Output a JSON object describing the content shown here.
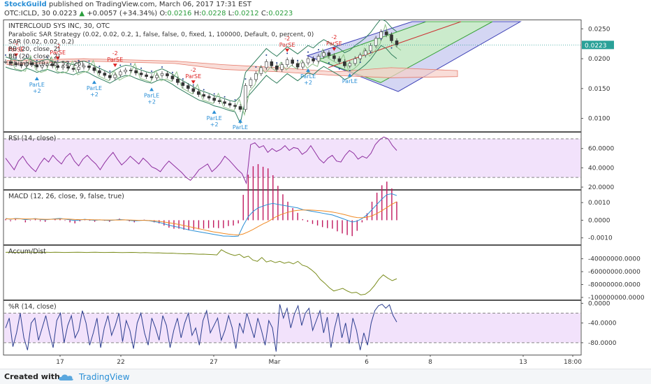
{
  "header": {
    "author": "StockGuild",
    "published_text": "published on TradingView.com, March 06, 2017 17:31 EST",
    "symbol": "OTC:ICLD, 30",
    "last": "0.0223",
    "change": "+0.0057 (+34.34%)",
    "ohlc": [
      {
        "k": "O:",
        "v": "0.0216"
      },
      {
        "k": "H:",
        "v": "0.0228"
      },
      {
        "k": "L:",
        "v": "0.0212"
      },
      {
        "k": "C:",
        "v": "0.0223"
      }
    ],
    "up_arrow": "▲"
  },
  "footer": {
    "created_with": "Created with",
    "brand": "TradingView",
    "logo_icon": "tradingview-cloud-icon"
  },
  "chart_data": [
    {
      "type": "candlestick",
      "title": "INTERCLOUD SYS INC, 30, OTC",
      "studies": [
        "Parabolic SAR Strategy (0.02, 0.02, 0.2, 1, false, false, 0, fixed, 1, 100000, Default, 0, percent, 0)",
        "SAR (0.02, 0.02, 0.2)",
        "BB (20, close, 2)",
        "BB (20, close, 2)",
        "Ichimoku (9, 26, 52, 26)"
      ],
      "ylim": [
        0.0082,
        0.0262
      ],
      "y_ticks": [
        "0.0250",
        "0.0200",
        "0.0150",
        "0.0100"
      ],
      "y_tick_values": [
        0.025,
        0.02,
        0.015,
        0.01
      ],
      "last_price_label": "0.0223",
      "last_price": 0.0223,
      "x_ticks": [
        "17",
        "22",
        "27",
        "Mar",
        "6",
        "8",
        "13",
        "18:00"
      ],
      "closes": [
        0.0195,
        0.0192,
        0.019,
        0.0188,
        0.0193,
        0.019,
        0.0186,
        0.0189,
        0.0191,
        0.0188,
        0.0185,
        0.0187,
        0.0184,
        0.0182,
        0.0186,
        0.0188,
        0.0185,
        0.018,
        0.0176,
        0.0172,
        0.0168,
        0.0173,
        0.0178,
        0.0181,
        0.018,
        0.0176,
        0.0173,
        0.017,
        0.0168,
        0.0172,
        0.0175,
        0.0171,
        0.0166,
        0.016,
        0.0155,
        0.015,
        0.0145,
        0.014,
        0.0137,
        0.0134,
        0.013,
        0.0128,
        0.0125,
        0.0122,
        0.012,
        0.0115,
        0.0155,
        0.0165,
        0.0175,
        0.0185,
        0.0195,
        0.0188,
        0.0182,
        0.019,
        0.0198,
        0.0192,
        0.0186,
        0.0193,
        0.02,
        0.0196,
        0.0204,
        0.021,
        0.0205,
        0.02,
        0.0195,
        0.0188,
        0.0192,
        0.02,
        0.0206,
        0.0213,
        0.0222,
        0.0234,
        0.0245,
        0.024,
        0.023,
        0.0223
      ],
      "signals": [
        {
          "label": "ParSE",
          "qty": "-2",
          "i": 2,
          "side": "sell"
        },
        {
          "label": "ParSE",
          "qty": "-2",
          "i": 10,
          "side": "sell"
        },
        {
          "label": "ParSE",
          "qty": "-2",
          "i": 21,
          "side": "sell"
        },
        {
          "label": "ParSE",
          "qty": "-2",
          "i": 36,
          "side": "sell"
        },
        {
          "label": "ParSE",
          "qty": "-2",
          "i": 54,
          "side": "sell"
        },
        {
          "label": "ParSE",
          "qty": "-2",
          "i": 63,
          "side": "sell"
        },
        {
          "label": "ParLE",
          "qty": "+2",
          "i": 6,
          "side": "buy"
        },
        {
          "label": "ParLE",
          "qty": "+2",
          "i": 17,
          "side": "buy"
        },
        {
          "label": "ParLE",
          "qty": "+2",
          "i": 28,
          "side": "buy"
        },
        {
          "label": "ParLE",
          "qty": "+2",
          "i": 40,
          "side": "buy"
        },
        {
          "label": "ParLE",
          "qty": "",
          "i": 45,
          "side": "buy"
        },
        {
          "label": "ParLE",
          "qty": "+2",
          "i": 58,
          "side": "buy"
        },
        {
          "label": "ParLE",
          "qty": "",
          "i": 66,
          "side": "buy"
        }
      ]
    },
    {
      "type": "line",
      "title": "RSI (14, close)",
      "ylim": [
        20,
        75
      ],
      "y_ticks": [
        "60.0000",
        "40.0000",
        "20.0000"
      ],
      "y_tick_values": [
        60,
        40,
        20
      ],
      "band": [
        30,
        70
      ],
      "values": [
        50,
        44,
        38,
        47,
        52,
        45,
        40,
        36,
        44,
        50,
        46,
        53,
        48,
        44,
        51,
        55,
        47,
        42,
        49,
        53,
        48,
        44,
        38,
        45,
        51,
        56,
        49,
        43,
        47,
        52,
        48,
        44,
        50,
        46,
        41,
        39,
        36,
        42,
        47,
        43,
        39,
        35,
        30,
        27,
        32,
        38,
        41,
        44,
        36,
        40,
        45,
        52,
        48,
        43,
        38,
        34,
        24,
        64,
        66,
        61,
        63,
        56,
        60,
        57,
        59,
        63,
        58,
        61,
        60,
        54,
        57,
        63,
        56,
        49,
        45,
        50,
        53,
        47,
        46,
        53,
        58,
        55,
        49,
        52,
        50,
        55,
        64,
        69,
        72,
        70,
        63,
        58
      ]
    },
    {
      "type": "line",
      "title": "MACD (12, 26, close, 9, false, true)",
      "ylim": [
        -0.00125,
        0.0016
      ],
      "y_ticks": [
        "0.0010",
        "0.0000",
        "-0.0010"
      ],
      "y_tick_values": [
        0.001,
        0,
        -0.001
      ],
      "macd": [
        0.0001,
        5e-05,
        0.0001,
        8e-05,
        3e-05,
        6e-05,
        9e-05,
        4e-05,
        2e-05,
        5e-05,
        8e-05,
        0.0001,
        6e-05,
        2e-05,
        -2e-05,
        1e-05,
        5e-05,
        2e-05,
        -1e-05,
        2e-05,
        0,
        -2e-05,
        1e-05,
        4e-05,
        2e-05,
        -1e-05,
        -4e-05,
        -2e-05,
        0,
        -3e-05,
        -8e-05,
        -0.00012,
        -0.0002,
        -0.00028,
        -0.00035,
        -0.0004,
        -0.00048,
        -0.00055,
        -0.0006,
        -0.00065,
        -0.0007,
        -0.00075,
        -0.0008,
        -0.00085,
        -0.0009,
        -0.0009,
        -0.00092,
        -0.0009,
        -0.0003,
        0.0002,
        0.0005,
        0.0007,
        0.0008,
        0.0009,
        0.00095,
        0.0009,
        0.00085,
        0.0008,
        0.00075,
        0.0007,
        0.0006,
        0.00055,
        0.0005,
        0.00045,
        0.0004,
        0.00035,
        0.0003,
        0.0002,
        0.0001,
        0,
        -0.0001,
        -5e-05,
        0.0001,
        0.0003,
        0.0006,
        0.0009,
        0.0012,
        0.00145,
        0.0015,
        0.0014
      ],
      "signal": [
        8e-05,
        7e-05,
        8e-05,
        8e-05,
        7e-05,
        7e-05,
        7e-05,
        6e-05,
        5e-05,
        5e-05,
        6e-05,
        7e-05,
        7e-05,
        6e-05,
        4e-05,
        3e-05,
        3e-05,
        3e-05,
        2e-05,
        2e-05,
        1e-05,
        1e-05,
        1e-05,
        1e-05,
        2e-05,
        1e-05,
        0,
        -1e-05,
        -1e-05,
        -2e-05,
        -4e-05,
        -6e-05,
        -0.0001,
        -0.00014,
        -0.00019,
        -0.00024,
        -0.0003,
        -0.00036,
        -0.00042,
        -0.00048,
        -0.00054,
        -0.0006,
        -0.00066,
        -0.0007,
        -0.00075,
        -0.00079,
        -0.00082,
        -0.00084,
        -0.00078,
        -0.00066,
        -0.00052,
        -0.00036,
        -0.00021,
        -8e-05,
        0.0001,
        0.00025,
        0.00036,
        0.00045,
        0.00052,
        0.00056,
        0.00058,
        0.00058,
        0.00057,
        0.00055,
        0.00053,
        0.0005,
        0.00046,
        0.00041,
        0.00035,
        0.00028,
        0.0002,
        0.00015,
        0.00014,
        0.00017,
        0.00025,
        0.00038,
        0.00054,
        0.00072,
        0.0009,
        0.00105
      ]
    },
    {
      "type": "line",
      "title": "Accum/Dist",
      "ylim": [
        -100000000,
        -22000000
      ],
      "y_ticks": [
        "-40000000.0000",
        "-60000000.0000",
        "-80000000.0000",
        "-100000000.0000"
      ],
      "y_tick_values": [
        -40000000,
        -60000000,
        -80000000,
        -100000000
      ],
      "values": [
        -30000000,
        -29800000,
        -30100000,
        -29900000,
        -30000000,
        -29700000,
        -29900000,
        -30200000,
        -30000000,
        -29800000,
        -30100000,
        -29900000,
        -30000000,
        -30300000,
        -30100000,
        -30000000,
        -29800000,
        -30000000,
        -30200000,
        -30000000,
        -29900000,
        -30100000,
        -30300000,
        -30100000,
        -30000000,
        -30200000,
        -30400000,
        -30200000,
        -30100000,
        -30300000,
        -30600000,
        -30400000,
        -30700000,
        -31000000,
        -30800000,
        -31200000,
        -31500000,
        -31300000,
        -31800000,
        -32000000,
        -32400000,
        -32200000,
        -32600000,
        -33000000,
        -32800000,
        -33200000,
        -33500000,
        -34000000,
        -26000000,
        -30000000,
        -33000000,
        -35000000,
        -33000000,
        -38000000,
        -36000000,
        -42000000,
        -44000000,
        -38000000,
        -45000000,
        -43000000,
        -46000000,
        -44000000,
        -47000000,
        -45000000,
        -48000000,
        -44000000,
        -50000000,
        -52000000,
        -57000000,
        -63000000,
        -72000000,
        -78000000,
        -85000000,
        -90000000,
        -88000000,
        -86000000,
        -90000000,
        -93000000,
        -92000000,
        -96000000,
        -95000000,
        -90000000,
        -82000000,
        -72000000,
        -65000000,
        -70000000,
        -74000000,
        -71000000
      ]
    },
    {
      "type": "line",
      "title": "%R (14, close)",
      "ylim": [
        -100,
        2
      ],
      "y_ticks": [
        "0.0000",
        "-40.0000",
        "-80.0000"
      ],
      "y_tick_values": [
        0,
        -40,
        -80
      ],
      "band": [
        -20,
        -80
      ],
      "values": [
        -50,
        -30,
        -88,
        -60,
        -20,
        -70,
        -95,
        -40,
        -30,
        -75,
        -50,
        -25,
        -60,
        -90,
        -35,
        -20,
        -80,
        -45,
        -25,
        -70,
        -55,
        -15,
        -40,
        -85,
        -60,
        -30,
        -90,
        -50,
        -25,
        -65,
        -45,
        -20,
        -78,
        -35,
        -55,
        -92,
        -40,
        -20,
        -60,
        -85,
        -30,
        -50,
        -75,
        -25,
        -45,
        -90,
        -55,
        -30,
        -70,
        -40,
        -20,
        -65,
        -50,
        -85,
        -35,
        -15,
        -60,
        -45,
        -30,
        -75,
        -55,
        -25,
        -50,
        -92,
        -40,
        -60,
        -20,
        -45,
        -70,
        -30,
        -55,
        -85,
        -35,
        -50,
        -98,
        -2,
        -30,
        -10,
        -50,
        -22,
        -5,
        -45,
        -20,
        -10,
        -55,
        -35,
        -15,
        -60,
        -28,
        -90,
        -50,
        -20,
        -70,
        -40,
        -82,
        -30,
        -55,
        -95,
        -60,
        -85,
        -40,
        -15,
        -5,
        -2,
        -10,
        -3,
        -25,
        -38
      ]
    }
  ]
}
